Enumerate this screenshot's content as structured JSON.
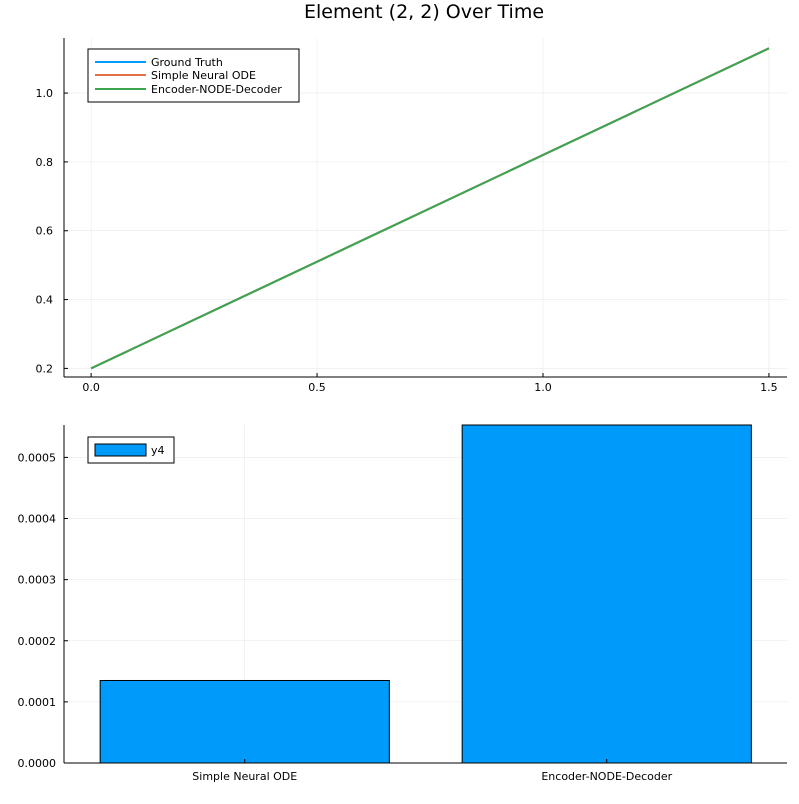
{
  "chart_data": [
    {
      "type": "line",
      "title": "Element (2, 2) Over Time",
      "xlabel": "",
      "ylabel": "",
      "xlim": [
        -0.06,
        1.54
      ],
      "ylim": [
        0.175,
        1.16
      ],
      "xticks": [
        0.0,
        0.5,
        1.0,
        1.5
      ],
      "xtick_labels": [
        "0.0",
        "0.5",
        "1.0",
        "1.5"
      ],
      "yticks": [
        0.2,
        0.4,
        0.6,
        0.8,
        1.0
      ],
      "ytick_labels": [
        "0.2",
        "0.4",
        "0.6",
        "0.8",
        "1.0"
      ],
      "grid": true,
      "legend_position": "top-left",
      "series": [
        {
          "name": "Ground Truth",
          "color": "#009AFA",
          "x": [
            0.0,
            1.5
          ],
          "y": [
            0.2,
            1.13
          ]
        },
        {
          "name": "Simple Neural ODE",
          "color": "#E26F46",
          "x": [
            0.0,
            1.5
          ],
          "y": [
            0.2,
            1.13
          ]
        },
        {
          "name": "Encoder-NODE-Decoder",
          "color": "#3EA44E",
          "x": [
            0.0,
            1.5
          ],
          "y": [
            0.2,
            1.13
          ]
        }
      ]
    },
    {
      "type": "bar",
      "title": "",
      "xlabel": "",
      "ylabel": "",
      "categories": [
        "Simple Neural ODE",
        "Encoder-NODE-Decoder"
      ],
      "ylim": [
        0,
        0.000553
      ],
      "yticks": [
        0,
        0.0001,
        0.0002,
        0.0003,
        0.0004,
        0.0005
      ],
      "ytick_labels": [
        "0.0000",
        "0.0001",
        "0.0002",
        "0.0003",
        "0.0004",
        "0.0005"
      ],
      "grid": true,
      "legend_position": "top-left",
      "series": [
        {
          "name": "y4",
          "color": "#009AFA",
          "values": [
            0.000135,
            0.000553
          ]
        }
      ]
    }
  ]
}
